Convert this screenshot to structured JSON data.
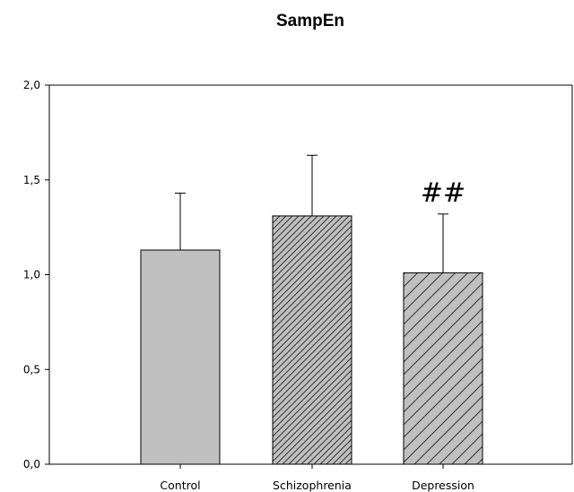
{
  "chart_data": {
    "type": "bar",
    "title": "SampEn",
    "xlabel": "",
    "ylabel": "",
    "ylim": [
      0,
      2.0
    ],
    "yticks": [
      "0,0",
      "0,5",
      "1,0",
      "1,5",
      "2,0"
    ],
    "ytick_values": [
      0,
      0.5,
      1.0,
      1.5,
      2.0
    ],
    "grid": false,
    "categories": [
      "Control",
      "Schizophrenia",
      "Depression"
    ],
    "values": [
      1.13,
      1.31,
      1.01
    ],
    "error_upper": [
      1.43,
      1.63,
      1.32
    ],
    "fill_colors": [
      "#c0c0c0",
      "#c0c0c0",
      "#c0c0c0"
    ],
    "patterns": [
      "none",
      "dense-diagonal-hatch",
      "sparse-diagonal-hatch"
    ],
    "annotations": [
      {
        "category": "Depression",
        "text": "##"
      }
    ]
  }
}
